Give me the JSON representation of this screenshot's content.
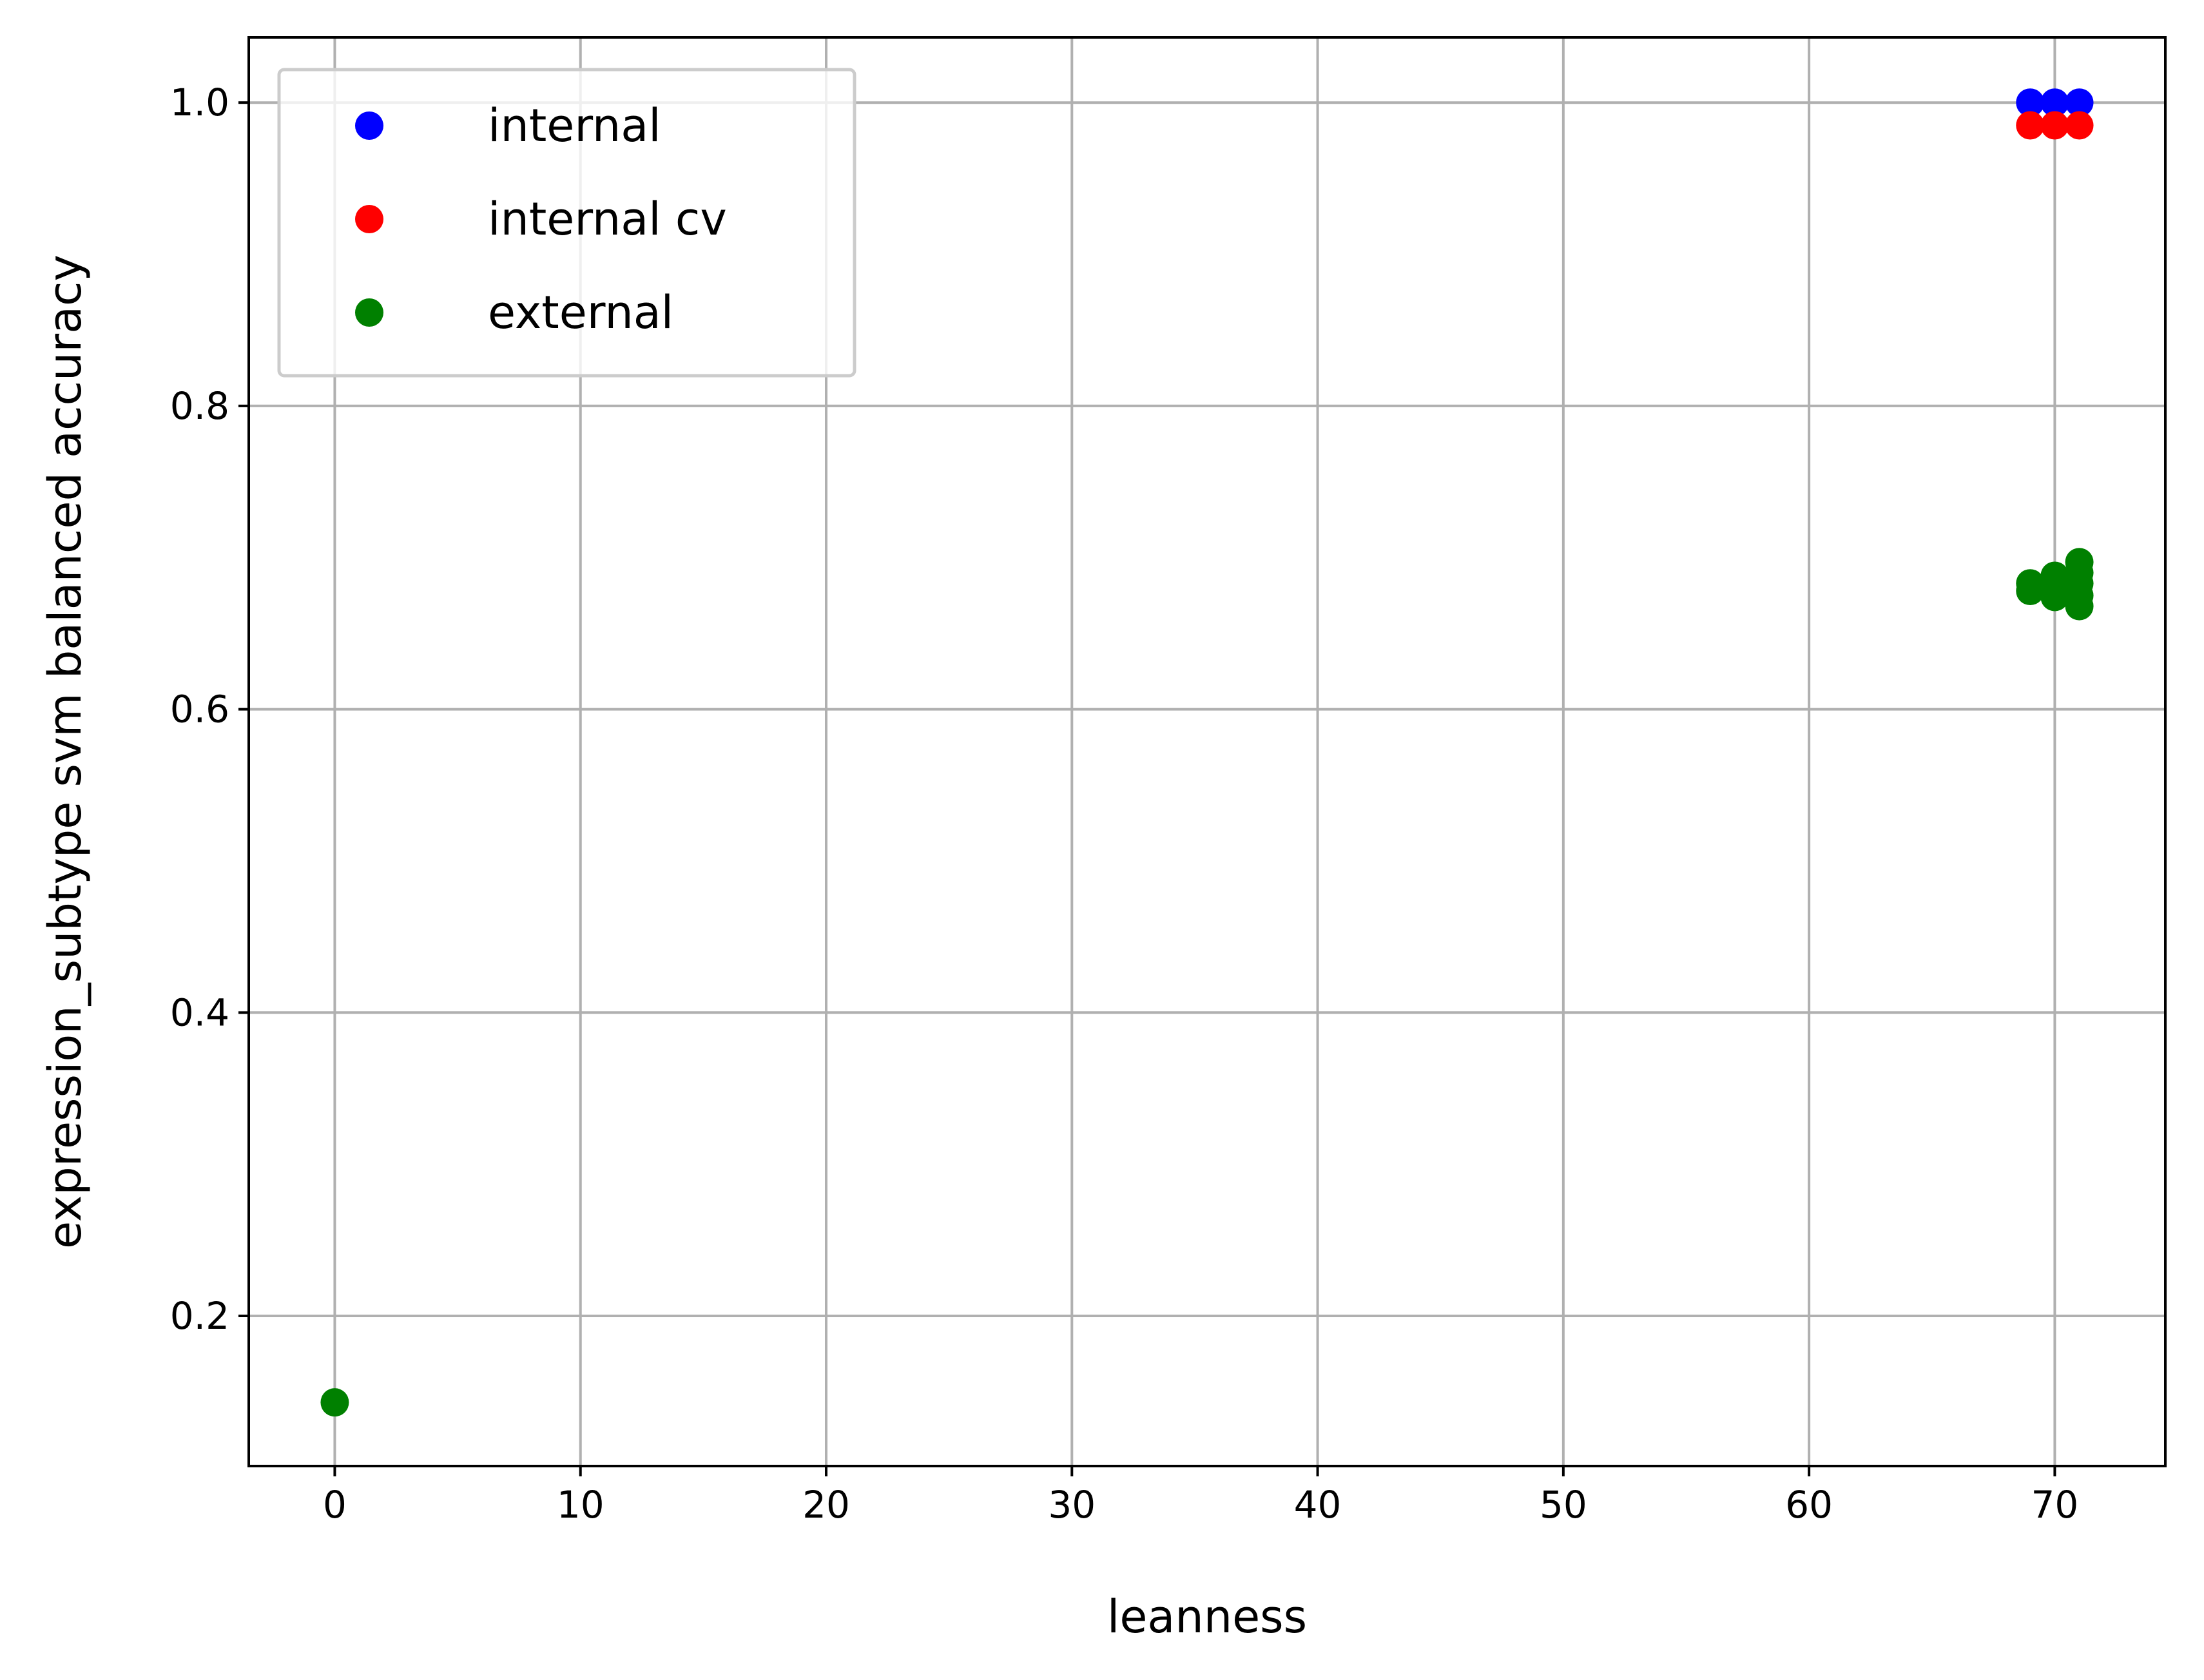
{
  "chart_data": {
    "type": "scatter",
    "xlabel": "leanness",
    "ylabel": "expression_subtype svm balanced accuracy",
    "xlim": [
      -3.5,
      74.5
    ],
    "ylim": [
      0.101,
      1.043
    ],
    "xticks": [
      0,
      10,
      20,
      30,
      40,
      50,
      60,
      70
    ],
    "yticks": [
      0.2,
      0.4,
      0.6,
      0.8,
      1.0
    ],
    "xtick_labels": [
      "0",
      "10",
      "20",
      "30",
      "40",
      "50",
      "60",
      "70"
    ],
    "ytick_labels": [
      "0.2",
      "0.4",
      "0.6",
      "0.8",
      "1.0"
    ],
    "grid": true,
    "legend_position": "upper-left",
    "series": [
      {
        "name": "internal",
        "color": "#0000ff",
        "points": [
          [
            69,
            1.0
          ],
          [
            70,
            1.0
          ],
          [
            71,
            1.0
          ]
        ]
      },
      {
        "name": "internal cv",
        "color": "#ff0000",
        "points": [
          [
            69,
            0.985
          ],
          [
            70,
            0.985
          ],
          [
            71,
            0.985
          ]
        ]
      },
      {
        "name": "external",
        "color": "#008000",
        "points": [
          [
            0,
            0.143
          ],
          [
            69,
            0.678
          ],
          [
            69,
            0.683
          ],
          [
            70,
            0.674
          ],
          [
            70,
            0.68
          ],
          [
            70,
            0.688
          ],
          [
            71,
            0.668
          ],
          [
            71,
            0.675
          ],
          [
            71,
            0.683
          ],
          [
            71,
            0.69
          ],
          [
            71,
            0.697
          ]
        ]
      }
    ]
  }
}
